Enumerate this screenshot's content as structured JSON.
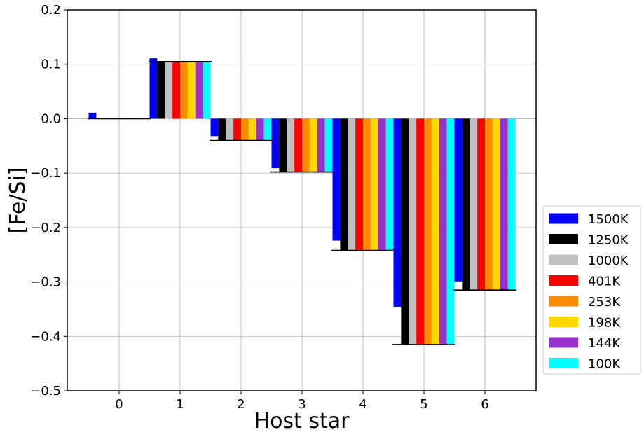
{
  "chart_data": {
    "type": "bar",
    "title": "",
    "xlabel": "Host star",
    "ylabel": "[Fe/Si]",
    "categories": [
      "0",
      "1",
      "2",
      "3",
      "4",
      "5",
      "6"
    ],
    "ylim": [
      -0.5,
      0.2
    ],
    "yticks": [
      -0.5,
      -0.4,
      -0.3,
      -0.2,
      -0.1,
      0.0,
      0.1,
      0.2
    ],
    "ytick_labels": [
      "−0.5",
      "−0.4",
      "−0.3",
      "−0.2",
      "−0.1",
      "0.0",
      "0.1",
      "0.2"
    ],
    "grid": true,
    "legend_position": "right, outside plot, lower",
    "series": [
      {
        "name": "1500K",
        "color": "#0000ff",
        "values": [
          0.011,
          0.111,
          -0.032,
          -0.091,
          -0.224,
          -0.346,
          -0.299
        ]
      },
      {
        "name": "1250K",
        "color": "#000000",
        "values": [
          0.0,
          0.105,
          -0.04,
          -0.098,
          -0.242,
          -0.415,
          -0.315
        ]
      },
      {
        "name": "1000K",
        "color": "#c0c0c0",
        "values": [
          0.0,
          0.105,
          -0.04,
          -0.098,
          -0.242,
          -0.415,
          -0.315
        ]
      },
      {
        "name": "401K",
        "color": "#ff0000",
        "values": [
          0.0,
          0.105,
          -0.04,
          -0.098,
          -0.242,
          -0.415,
          -0.315
        ]
      },
      {
        "name": "253K",
        "color": "#ff8c00",
        "values": [
          0.0,
          0.105,
          -0.04,
          -0.098,
          -0.242,
          -0.415,
          -0.315
        ]
      },
      {
        "name": "198K",
        "color": "#ffd700",
        "values": [
          0.0,
          0.105,
          -0.04,
          -0.098,
          -0.242,
          -0.415,
          -0.315
        ]
      },
      {
        "name": "144K",
        "color": "#9932cc",
        "values": [
          0.0,
          0.105,
          -0.04,
          -0.098,
          -0.242,
          -0.415,
          -0.315
        ]
      },
      {
        "name": "100K",
        "color": "#00ffff",
        "values": [
          0.0,
          0.105,
          -0.04,
          -0.098,
          -0.242,
          -0.415,
          -0.315
        ]
      }
    ],
    "reference_lines": {
      "description_color": "#000000",
      "values": [
        0.0,
        0.105,
        -0.04,
        -0.098,
        -0.242,
        -0.415,
        -0.315
      ]
    }
  }
}
